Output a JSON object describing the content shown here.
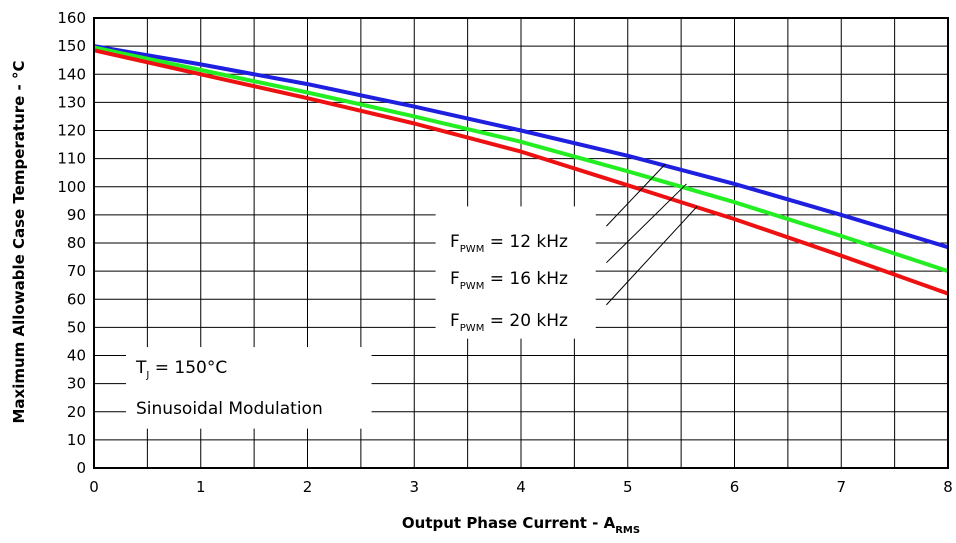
{
  "chart_data": {
    "type": "line",
    "xlabel": "Output Phase Current - A",
    "xlabel_subscript": "RMS",
    "ylabel": "Maximum Allowable Case Temperature - °C",
    "xlim": [
      0,
      8
    ],
    "ylim": [
      0,
      160
    ],
    "x_ticks": [
      "0",
      "1",
      "2",
      "3",
      "4",
      "5",
      "6",
      "7",
      "8"
    ],
    "y_ticks": [
      "0",
      "10",
      "20",
      "30",
      "40",
      "50",
      "60",
      "70",
      "80",
      "90",
      "100",
      "110",
      "120",
      "130",
      "140",
      "150",
      "160"
    ],
    "grid": true,
    "series": [
      {
        "name": "F_PWM = 12 kHz",
        "color": "#1f1fe0",
        "x": [
          0,
          1,
          2,
          3,
          4,
          5,
          6,
          7,
          8
        ],
        "y": [
          150,
          143.5,
          136.5,
          128.5,
          120,
          111,
          101,
          90,
          78.5
        ]
      },
      {
        "name": "F_PWM = 16 kHz",
        "color": "#22ee22",
        "x": [
          0,
          1,
          2,
          3,
          4,
          5,
          6,
          7,
          8
        ],
        "y": [
          149.5,
          141.5,
          133.5,
          125,
          116,
          105.5,
          94.5,
          82.5,
          70
        ]
      },
      {
        "name": "F_PWM = 20 kHz",
        "color": "#ee1111",
        "x": [
          0,
          1,
          2,
          3,
          4,
          5,
          6,
          7,
          8
        ],
        "y": [
          148.5,
          140,
          131.5,
          122.5,
          112.5,
          100.5,
          88.5,
          75.5,
          62
        ]
      }
    ],
    "legend": {
      "labels": [
        {
          "main": "F",
          "sub": "PWM",
          "rest": " = 12 kHz"
        },
        {
          "main": "F",
          "sub": "PWM",
          "rest": " = 16 kHz"
        },
        {
          "main": "F",
          "sub": "PWM",
          "rest": " = 20 kHz"
        }
      ],
      "placement": "center-right"
    },
    "annotations": {
      "tj_main": "T",
      "tj_sub": "J",
      "tj_rest": " = 150°C",
      "modulation": "Sinusoidal Modulation"
    }
  }
}
